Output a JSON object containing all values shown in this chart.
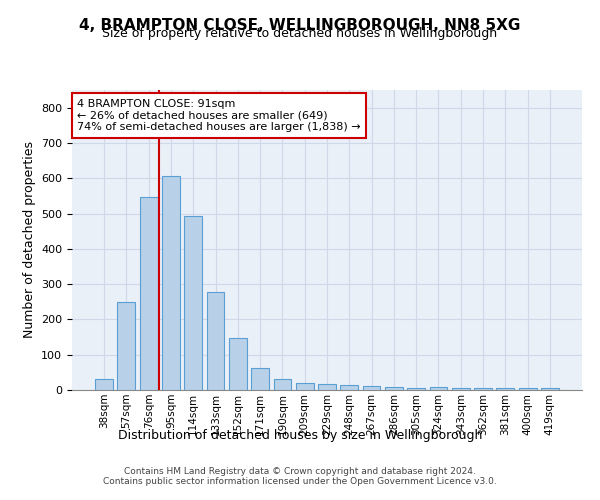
{
  "title": "4, BRAMPTON CLOSE, WELLINGBOROUGH, NN8 5XG",
  "subtitle": "Size of property relative to detached houses in Wellingborough",
  "xlabel": "Distribution of detached houses by size in Wellingborough",
  "ylabel": "Number of detached properties",
  "categories": [
    "38sqm",
    "57sqm",
    "76sqm",
    "95sqm",
    "114sqm",
    "133sqm",
    "152sqm",
    "171sqm",
    "190sqm",
    "209sqm",
    "229sqm",
    "248sqm",
    "267sqm",
    "286sqm",
    "305sqm",
    "324sqm",
    "343sqm",
    "362sqm",
    "381sqm",
    "400sqm",
    "419sqm"
  ],
  "bar_heights": [
    32,
    248,
    548,
    605,
    493,
    278,
    148,
    62,
    32,
    20,
    16,
    14,
    11,
    8,
    6,
    8,
    6,
    5,
    5,
    5,
    5
  ],
  "bar_color": "#b8d0e8",
  "bar_edge_color": "#5a9fd4",
  "bar_width": 0.8,
  "red_line_color": "#cc0000",
  "grid_color": "#d0d8e8",
  "background_color": "#eaf0f8",
  "ylim": [
    0,
    850
  ],
  "yticks": [
    0,
    100,
    200,
    300,
    400,
    500,
    600,
    700,
    800
  ],
  "annotation_line1": "4 BRAMPTON CLOSE: 91sqm",
  "annotation_line2": "← 26% of detached houses are smaller (649)",
  "annotation_line3": "74% of semi-detached houses are larger (1,838) →",
  "footnote_line1": "Contains HM Land Registry data © Crown copyright and database right 2024.",
  "footnote_line2": "Contains public sector information licensed under the Open Government Licence v3.0."
}
